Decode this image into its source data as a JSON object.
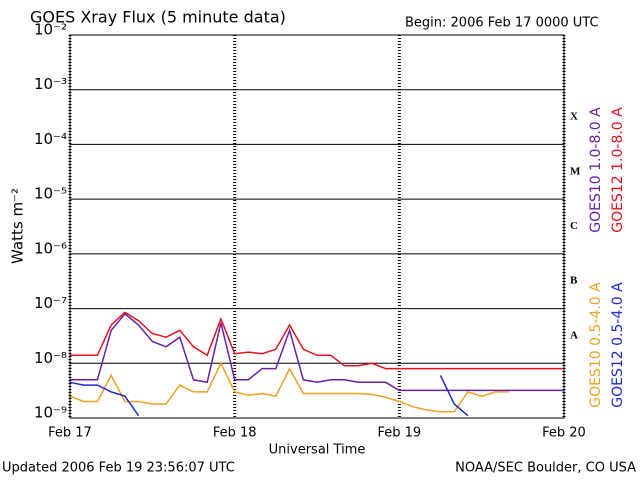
{
  "chart_data": {
    "type": "line",
    "title": "GOES Xray Flux (5 minute data)",
    "subtitle": "Begin:  2006 Feb 17 0000 UTC",
    "x_label": "Universal Time",
    "y_label": "Watts m⁻²",
    "footer_left": "Updated 2006 Feb 19 23:56:07 UTC",
    "footer_right": "NOAA/SEC Boulder, CO USA",
    "yscale": "log",
    "grid": true,
    "xlim": [
      0,
      72
    ],
    "xticks": [
      {
        "value": 0,
        "label": "Feb 17"
      },
      {
        "value": 24,
        "label": "Feb 18"
      },
      {
        "value": 48,
        "label": "Feb 19"
      },
      {
        "value": 72,
        "label": "Feb 20"
      }
    ],
    "ylim": [
      1e-09,
      0.01
    ],
    "yticks": [
      {
        "value": 0.01,
        "label": "10⁻²"
      },
      {
        "value": 0.001,
        "label": "10⁻³"
      },
      {
        "value": 0.0001,
        "label": "10⁻⁴"
      },
      {
        "value": 1e-05,
        "label": "10⁻⁵"
      },
      {
        "value": 1e-06,
        "label": "10⁻⁶"
      },
      {
        "value": 1e-07,
        "label": "10⁻⁷"
      },
      {
        "value": 1e-08,
        "label": "10⁻⁸"
      },
      {
        "value": 1e-09,
        "label": "10⁻⁹"
      }
    ],
    "flare_classes": [
      {
        "label": "X",
        "value": 0.0001
      },
      {
        "label": "M",
        "value": 1e-05
      },
      {
        "label": "C",
        "value": 1e-06
      },
      {
        "label": "B",
        "value": 1e-07
      },
      {
        "label": "A",
        "value": 1e-08
      }
    ],
    "x": [
      0,
      2,
      4,
      6,
      8,
      10,
      12,
      14,
      16,
      18,
      20,
      22,
      24,
      26,
      28,
      30,
      32,
      34,
      36,
      38,
      40,
      42,
      44,
      46,
      48,
      50,
      52,
      54,
      56,
      58,
      60,
      62,
      64,
      66,
      68,
      70,
      72
    ],
    "series": [
      {
        "name": "GOES10 1.0-8.0 A",
        "color": "#6a1fa8",
        "values": [
          5e-09,
          5e-09,
          5e-09,
          4e-08,
          8e-08,
          5e-08,
          2.5e-08,
          2e-08,
          3e-08,
          5e-09,
          4.5e-09,
          5.5e-08,
          5e-09,
          5e-09,
          8e-09,
          8e-09,
          4e-08,
          5e-09,
          4.5e-09,
          5e-09,
          5e-09,
          4.5e-09,
          4.5e-09,
          4.5e-09,
          3.2e-09,
          3.2e-09,
          3.2e-09,
          3.2e-09,
          3.2e-09,
          3.2e-09,
          3.2e-09,
          3.2e-09,
          3.2e-09,
          3.2e-09,
          3.2e-09,
          3.2e-09,
          3.2e-09
        ]
      },
      {
        "name": "GOES12 1.0-8.0 A",
        "color": "#e8101c",
        "values": [
          1.4e-08,
          1.4e-08,
          1.4e-08,
          5e-08,
          8.5e-08,
          6e-08,
          3.5e-08,
          3e-08,
          4e-08,
          2e-08,
          1.4e-08,
          6.5e-08,
          1.5e-08,
          1.6e-08,
          1.5e-08,
          1.8e-08,
          5e-08,
          1.8e-08,
          1.4e-08,
          1.4e-08,
          9e-09,
          9e-09,
          1e-08,
          8e-09,
          8e-09,
          8e-09,
          8e-09,
          8e-09,
          8e-09,
          8e-09,
          8e-09,
          8e-09,
          8e-09,
          8e-09,
          8e-09,
          8e-09,
          8e-09
        ]
      },
      {
        "name": "GOES10 0.5-4.0 A",
        "color": "#f0a020",
        "values": [
          2.5e-09,
          2e-09,
          2e-09,
          6e-09,
          2e-09,
          2e-09,
          1.8e-09,
          1.8e-09,
          4e-09,
          3e-09,
          3e-09,
          1e-08,
          3e-09,
          2.6e-09,
          2.8e-09,
          2.5e-09,
          8e-09,
          2.8e-09,
          2.8e-09,
          2.8e-09,
          2.8e-09,
          2.8e-09,
          2.7e-09,
          2.4e-09,
          2e-09,
          1.6e-09,
          1.4e-09,
          1.3e-09,
          1.3e-09,
          3e-09,
          2.5e-09,
          3e-09,
          3e-09,
          null,
          null,
          null,
          null
        ]
      },
      {
        "name": "GOES12 0.5-4.0 A",
        "color": "#1a2ad8",
        "values": [
          4.5e-09,
          4e-09,
          4e-09,
          3e-09,
          2.5e-09,
          1.1e-09,
          null,
          null,
          null,
          null,
          null,
          null,
          null,
          null,
          null,
          null,
          null,
          null,
          null,
          null,
          null,
          null,
          null,
          null,
          null,
          null,
          null,
          6e-09,
          1.8e-09,
          1.1e-09,
          null,
          null,
          null,
          null,
          null,
          null,
          null
        ]
      }
    ]
  }
}
